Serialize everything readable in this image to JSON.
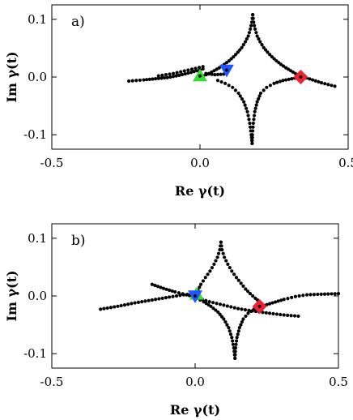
{
  "chart_data": [
    {
      "type": "scatter",
      "panel_label": "a)",
      "xlabel": "Re γ(t)",
      "ylabel": "Im γ(t)",
      "xlim": [
        -0.5,
        0.5
      ],
      "ylim": [
        -0.125,
        0.125
      ],
      "xticks": [
        -0.5,
        0.0,
        0.5
      ],
      "xtick_labels": [
        "-0.5",
        "0.0",
        "0.5"
      ],
      "yticks": [
        -0.1,
        0.0,
        0.1
      ],
      "ytick_labels": [
        "-0.1",
        "0.0",
        "0.1"
      ],
      "grid": false,
      "marker_color": "#000000",
      "series": [
        {
          "values": [
            [
              0.178,
              0.108
            ],
            [
              0.175,
              0.095
            ],
            [
              0.17,
              0.083
            ],
            [
              0.163,
              0.071
            ],
            [
              0.153,
              0.061
            ],
            [
              0.141,
              0.051
            ],
            [
              0.128,
              0.043
            ],
            [
              0.113,
              0.035
            ],
            [
              0.098,
              0.028
            ],
            [
              0.082,
              0.022
            ],
            [
              0.065,
              0.016
            ],
            [
              0.048,
              0.011
            ],
            [
              0.03,
              0.006
            ],
            [
              0.012,
              0.002
            ]
          ]
        },
        {
          "values": [
            [
              0.01,
              0.014
            ],
            [
              -0.03,
              0.008
            ],
            [
              -0.07,
              0.003
            ],
            [
              -0.11,
              -0.001
            ],
            [
              -0.15,
              -0.003
            ],
            [
              -0.19,
              -0.005
            ],
            [
              -0.24,
              -0.007
            ]
          ]
        },
        {
          "values": [
            [
              0.01,
              0.018
            ],
            [
              -0.04,
              0.012
            ],
            [
              -0.09,
              0.006
            ],
            [
              -0.14,
              0.002
            ]
          ]
        },
        {
          "values": [
            [
              0.02,
              0.006
            ],
            [
              0.05,
              0.004
            ],
            [
              0.08,
              0.005
            ]
          ]
        },
        {
          "values": [
            [
              0.178,
              0.108
            ],
            [
              0.181,
              0.095
            ],
            [
              0.186,
              0.083
            ],
            [
              0.193,
              0.071
            ],
            [
              0.203,
              0.061
            ],
            [
              0.215,
              0.051
            ],
            [
              0.228,
              0.043
            ],
            [
              0.243,
              0.035
            ],
            [
              0.258,
              0.028
            ],
            [
              0.273,
              0.022
            ],
            [
              0.29,
              0.016
            ],
            [
              0.306,
              0.011
            ],
            [
              0.322,
              0.006
            ],
            [
              0.338,
              0.002
            ],
            [
              0.35,
              0.0
            ]
          ]
        },
        {
          "values": [
            [
              0.35,
              0.0
            ],
            [
              0.38,
              -0.005
            ],
            [
              0.41,
              -0.01
            ],
            [
              0.455,
              -0.016
            ]
          ]
        },
        {
          "values": [
            [
              0.34,
              0.0
            ],
            [
              0.31,
              -0.003
            ],
            [
              0.28,
              -0.006
            ],
            [
              0.25,
              -0.011
            ],
            [
              0.225,
              -0.018
            ],
            [
              0.205,
              -0.028
            ],
            [
              0.193,
              -0.043
            ],
            [
              0.185,
              -0.06
            ],
            [
              0.18,
              -0.08
            ],
            [
              0.177,
              -0.1
            ],
            [
              0.176,
              -0.115
            ]
          ]
        },
        {
          "values": [
            [
              0.176,
              -0.115
            ],
            [
              0.173,
              -0.1
            ],
            [
              0.168,
              -0.08
            ],
            [
              0.16,
              -0.06
            ],
            [
              0.148,
              -0.043
            ],
            [
              0.13,
              -0.028
            ],
            [
              0.11,
              -0.018
            ],
            [
              0.085,
              -0.011
            ],
            [
              0.06,
              -0.006
            ]
          ]
        }
      ],
      "highlight_markers": [
        {
          "shape": "triangle-up",
          "color": "#33dd33",
          "x": 0.0,
          "y": 0.002
        },
        {
          "shape": "triangle-down",
          "color": "#2255ff",
          "x": 0.09,
          "y": 0.012
        },
        {
          "shape": "diamond",
          "color": "#ee2233",
          "x": 0.34,
          "y": 0.0
        }
      ]
    },
    {
      "type": "scatter",
      "panel_label": "b)",
      "xlabel": "Re γ(t)",
      "ylabel": "Im γ(t)",
      "xlim": [
        -0.5,
        0.5
      ],
      "ylim": [
        -0.125,
        0.125
      ],
      "xticks": [
        -0.5,
        0.0,
        0.5
      ],
      "xtick_labels": [
        "-0.5",
        "0.0",
        "0.5"
      ],
      "yticks": [
        -0.1,
        0.0,
        0.1
      ],
      "ytick_labels": [
        "-0.1",
        "0.0",
        "0.1"
      ],
      "grid": false,
      "marker_color": "#000000",
      "series": [
        {
          "values": [
            [
              0.09,
              0.093
            ],
            [
              0.086,
              0.08
            ],
            [
              0.078,
              0.067
            ],
            [
              0.066,
              0.055
            ],
            [
              0.052,
              0.043
            ],
            [
              0.036,
              0.032
            ],
            [
              0.02,
              0.02
            ],
            [
              0.005,
              0.005
            ]
          ]
        },
        {
          "values": [
            [
              0.09,
              0.093
            ],
            [
              0.094,
              0.08
            ],
            [
              0.102,
              0.067
            ],
            [
              0.114,
              0.055
            ],
            [
              0.128,
              0.043
            ],
            [
              0.144,
              0.032
            ],
            [
              0.16,
              0.022
            ],
            [
              0.176,
              0.012
            ],
            [
              0.192,
              0.004
            ],
            [
              0.21,
              -0.004
            ],
            [
              0.225,
              -0.01
            ]
          ]
        },
        {
          "values": [
            [
              -0.15,
              0.02
            ],
            [
              -0.11,
              0.013
            ],
            [
              -0.07,
              0.007
            ],
            [
              -0.03,
              0.002
            ],
            [
              0.0,
              -0.002
            ],
            [
              0.05,
              -0.01
            ],
            [
              0.1,
              -0.016
            ],
            [
              0.15,
              -0.022
            ],
            [
              0.2,
              -0.026
            ],
            [
              0.26,
              -0.03
            ],
            [
              0.31,
              -0.033
            ],
            [
              0.36,
              -0.035
            ]
          ]
        },
        {
          "values": [
            [
              -0.33,
              -0.023
            ],
            [
              -0.27,
              -0.018
            ],
            [
              -0.21,
              -0.012
            ],
            [
              -0.15,
              -0.007
            ],
            [
              -0.09,
              -0.002
            ],
            [
              -0.04,
              0.002
            ],
            [
              0.0,
              0.004
            ]
          ]
        },
        {
          "values": [
            [
              0.23,
              -0.018
            ],
            [
              0.27,
              -0.012
            ],
            [
              0.31,
              -0.006
            ],
            [
              0.35,
              -0.001
            ],
            [
              0.39,
              0.002
            ],
            [
              0.44,
              0.003
            ],
            [
              0.5,
              0.004
            ]
          ]
        },
        {
          "values": [
            [
              0.225,
              -0.018
            ],
            [
              0.205,
              -0.023
            ],
            [
              0.185,
              -0.03
            ],
            [
              0.168,
              -0.04
            ],
            [
              0.155,
              -0.055
            ],
            [
              0.146,
              -0.072
            ],
            [
              0.141,
              -0.09
            ],
            [
              0.139,
              -0.108
            ]
          ]
        },
        {
          "values": [
            [
              0.139,
              -0.108
            ],
            [
              0.135,
              -0.09
            ],
            [
              0.128,
              -0.072
            ],
            [
              0.117,
              -0.055
            ],
            [
              0.1,
              -0.04
            ],
            [
              0.08,
              -0.028
            ],
            [
              0.055,
              -0.018
            ],
            [
              0.03,
              -0.01
            ],
            [
              0.005,
              -0.004
            ]
          ]
        }
      ],
      "highlight_markers": [
        {
          "shape": "triangle-up",
          "color": "#33dd33",
          "x": 0.005,
          "y": 0.003
        },
        {
          "shape": "triangle-down",
          "color": "#2255ff",
          "x": 0.0,
          "y": 0.0
        },
        {
          "shape": "diamond",
          "color": "#ee2233",
          "x": 0.225,
          "y": -0.018
        }
      ]
    }
  ]
}
